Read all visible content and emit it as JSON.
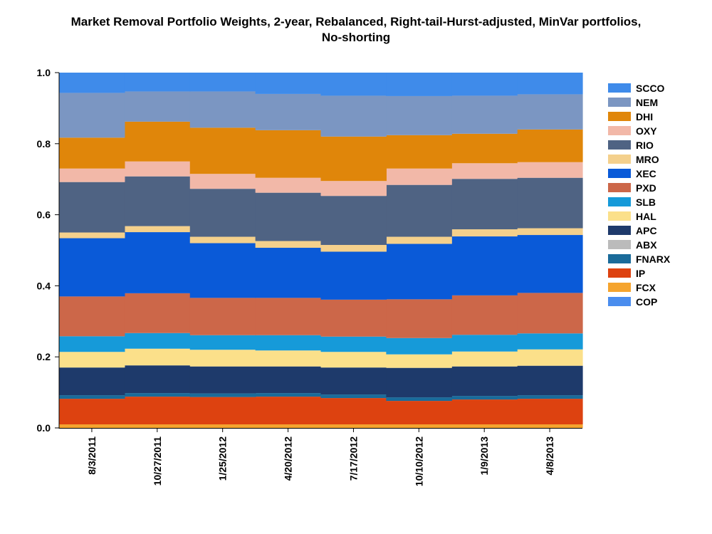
{
  "chart_data": {
    "type": "area",
    "stacking": "stacked-step",
    "title_lines": [
      "Market Removal Portfolio Weights, 2-year, Rebalanced, Right-tail-Hurst-adjusted, MinVar portfolios,",
      "No-shorting"
    ],
    "xlabel": "",
    "ylabel": "",
    "ylim": [
      0,
      1
    ],
    "yticks": [
      "0.0",
      "0.2",
      "0.4",
      "0.6",
      "0.8",
      "1.0"
    ],
    "ytick_values": [
      0,
      0.2,
      0.4,
      0.6,
      0.8,
      1.0
    ],
    "categories": [
      "8/3/2011",
      "10/27/2011",
      "1/25/2012",
      "4/20/2012",
      "7/17/2012",
      "10/10/2012",
      "1/9/2013",
      "4/8/2013"
    ],
    "legend_position": "right",
    "series": [
      {
        "name": "FCX",
        "color": "#F5A42E",
        "values": [
          0.01,
          0.01,
          0.01,
          0.01,
          0.01,
          0.01,
          0.01,
          0.01
        ]
      },
      {
        "name": "IP",
        "color": "#DD4210",
        "values": [
          0.072,
          0.078,
          0.077,
          0.078,
          0.074,
          0.066,
          0.07,
          0.072
        ]
      },
      {
        "name": "FNARX",
        "color": "#1A6B9A",
        "values": [
          0.01,
          0.01,
          0.01,
          0.01,
          0.01,
          0.01,
          0.01,
          0.01
        ]
      },
      {
        "name": "ABX",
        "color": "#BBBBBB",
        "values": [
          0.0,
          0.0,
          0.0,
          0.0,
          0.0,
          0.0,
          0.0,
          0.0
        ]
      },
      {
        "name": "APC",
        "color": "#1E3A6B",
        "values": [
          0.078,
          0.078,
          0.076,
          0.075,
          0.076,
          0.083,
          0.083,
          0.083
        ]
      },
      {
        "name": "HAL",
        "color": "#FBE08A",
        "values": [
          0.044,
          0.047,
          0.047,
          0.045,
          0.044,
          0.038,
          0.042,
          0.046
        ]
      },
      {
        "name": "SLB",
        "color": "#169AD9",
        "values": [
          0.044,
          0.044,
          0.041,
          0.043,
          0.043,
          0.046,
          0.047,
          0.045
        ]
      },
      {
        "name": "PXD",
        "color": "#CC6749",
        "values": [
          0.112,
          0.112,
          0.105,
          0.105,
          0.104,
          0.109,
          0.111,
          0.114
        ]
      },
      {
        "name": "XEC",
        "color": "#0A5AD8",
        "values": [
          0.164,
          0.172,
          0.154,
          0.141,
          0.135,
          0.156,
          0.166,
          0.163
        ]
      },
      {
        "name": "MRO",
        "color": "#F4D08C",
        "values": [
          0.016,
          0.017,
          0.018,
          0.019,
          0.019,
          0.02,
          0.02,
          0.019
        ]
      },
      {
        "name": "RIO",
        "color": "#4F6383",
        "values": [
          0.142,
          0.14,
          0.135,
          0.136,
          0.138,
          0.146,
          0.142,
          0.142
        ]
      },
      {
        "name": "OXY",
        "color": "#F2B8A8",
        "values": [
          0.038,
          0.042,
          0.042,
          0.042,
          0.042,
          0.046,
          0.044,
          0.044
        ]
      },
      {
        "name": "DHI",
        "color": "#E0860A",
        "values": [
          0.087,
          0.112,
          0.13,
          0.134,
          0.125,
          0.094,
          0.083,
          0.092
        ]
      },
      {
        "name": "NEM",
        "color": "#7B96C2",
        "values": [
          0.126,
          0.085,
          0.102,
          0.102,
          0.115,
          0.11,
          0.107,
          0.099
        ]
      },
      {
        "name": "SCCO",
        "color": "#3F8BEA",
        "values": [
          0.057,
          0.053,
          0.053,
          0.06,
          0.065,
          0.062,
          0.065,
          0.061
        ]
      },
      {
        "name": "COP",
        "color": "#4A8DEE",
        "values": [
          0.0,
          0.0,
          0.0,
          0.0,
          0.0,
          0.0,
          0.0,
          0.0
        ]
      }
    ],
    "legend_order": [
      "SCCO",
      "NEM",
      "DHI",
      "OXY",
      "RIO",
      "MRO",
      "XEC",
      "PXD",
      "SLB",
      "HAL",
      "APC",
      "ABX",
      "FNARX",
      "IP",
      "FCX",
      "COP"
    ]
  }
}
